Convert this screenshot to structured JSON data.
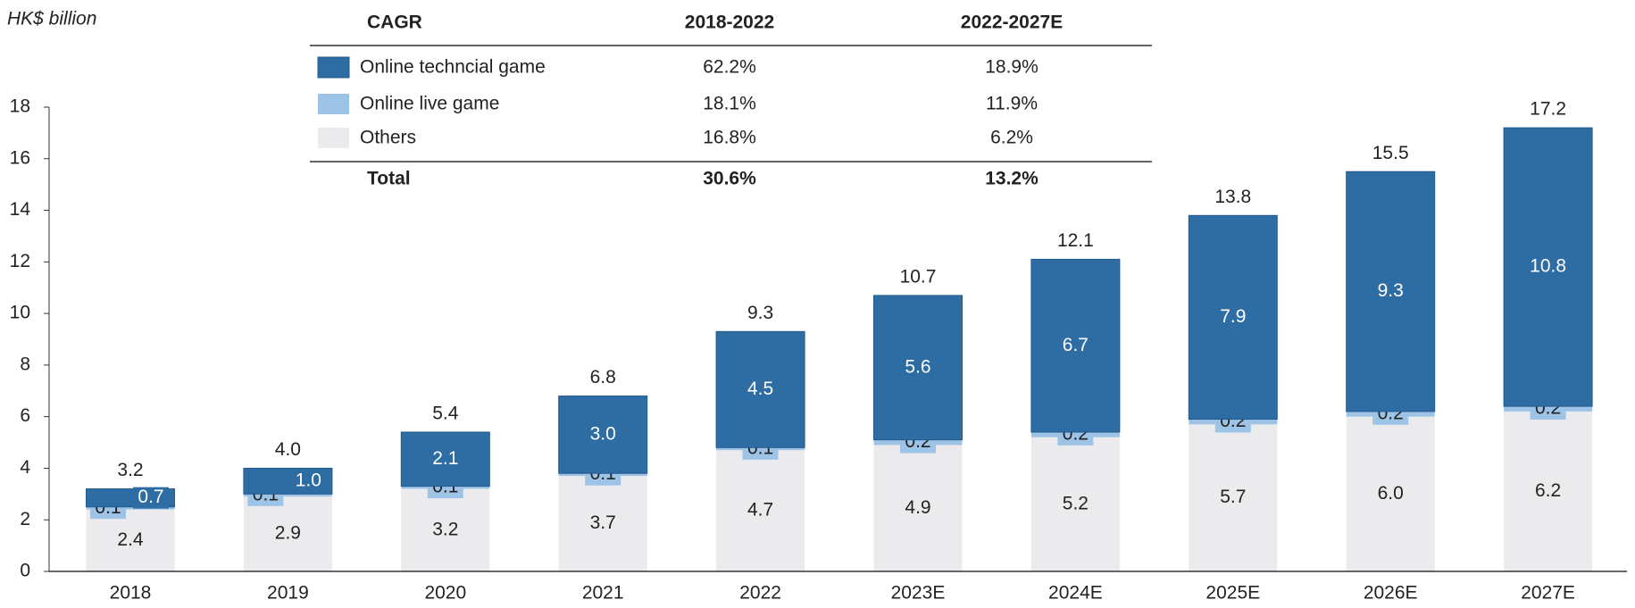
{
  "chart_data": {
    "type": "stacked-bar",
    "y_label": "HK$ billion",
    "categories": [
      "2018",
      "2019",
      "2020",
      "2021",
      "2022",
      "2023E",
      "2024E",
      "2025E",
      "2026E",
      "2027E"
    ],
    "series": [
      {
        "name": "Others",
        "color": "#ebebee",
        "values": [
          2.4,
          2.9,
          3.2,
          3.7,
          4.7,
          4.9,
          5.2,
          5.7,
          6,
          6.2
        ],
        "value_labels": [
          "2.4",
          "2.9",
          "3.2",
          "3.7",
          "4.7",
          "4.9",
          "5.2",
          "5.7",
          "6.0",
          "6.2"
        ]
      },
      {
        "name": "Online live game",
        "color": "#9dc3e6",
        "values": [
          0.1,
          0.1,
          0.1,
          0.1,
          0.1,
          0.2,
          0.2,
          0.2,
          0.2,
          0.2
        ],
        "value_labels": [
          "0.1",
          "0.1",
          "0.1",
          "0.1",
          "0.1",
          "0.2",
          "0.2",
          "0.2",
          "0.2",
          "0.2"
        ]
      },
      {
        "name": "Online techncial game",
        "color": "#2e6ca4",
        "values": [
          0.7,
          1,
          2.1,
          3,
          4.5,
          5.6,
          6.7,
          7.9,
          9.3,
          10.8
        ],
        "value_labels": [
          "0.7",
          "1.0",
          "2.1",
          "3.0",
          "4.5",
          "5.6",
          "6.7",
          "7.9",
          "9.3",
          "10.8"
        ]
      }
    ],
    "totals": {
      "values": [
        3.2,
        4,
        5.4,
        6.8,
        9.3,
        10.7,
        12.1,
        13.8,
        15.5,
        17.2
      ],
      "value_labels": [
        "3.2",
        "4.0",
        "5.4",
        "6.8",
        "9.3",
        "10.7",
        "12.1",
        "13.8",
        "15.5",
        "17.2"
      ]
    },
    "ylim": [
      0,
      18
    ],
    "yticks": [
      0,
      2,
      4,
      6,
      8,
      10,
      12,
      14,
      16,
      18
    ],
    "cagr_table": {
      "header": [
        "CAGR",
        "2018-2022",
        "2022-2027E"
      ],
      "rows": [
        [
          "62.2%",
          "18.9%"
        ],
        [
          "18.1%",
          "11.9%"
        ],
        [
          "16.8%",
          "6.2%"
        ]
      ],
      "total": [
        "Total",
        "30.6%",
        "13.2%"
      ]
    }
  }
}
